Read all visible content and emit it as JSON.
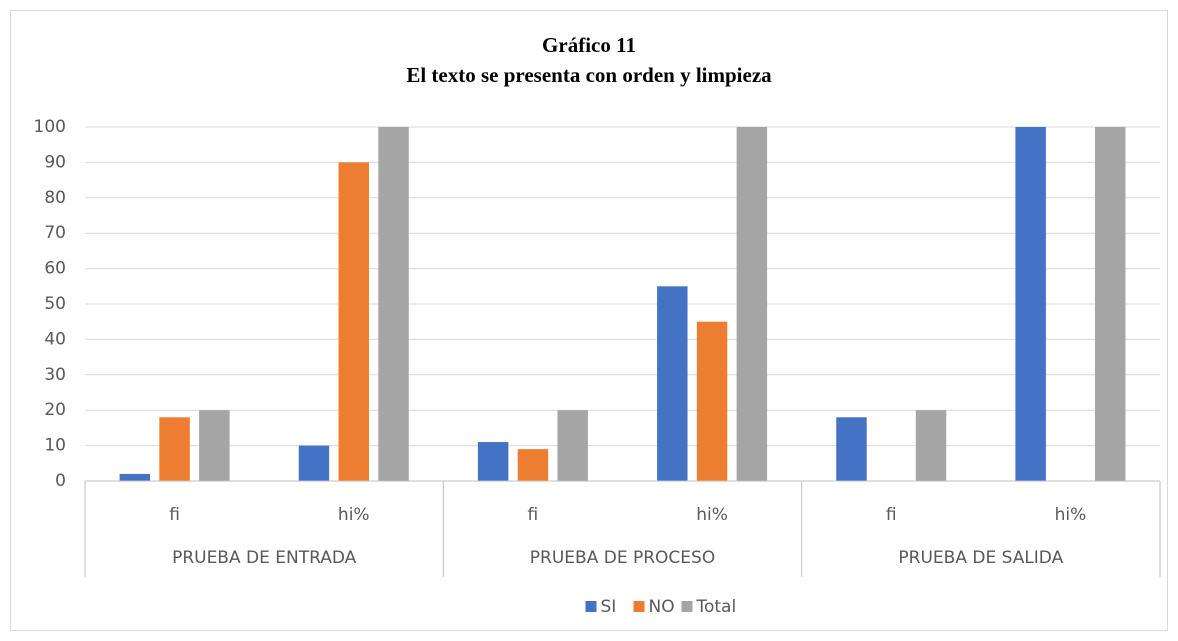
{
  "chart_data": {
    "type": "bar",
    "title": [
      "Gráfico 11",
      "El texto se presenta con orden y limpieza"
    ],
    "categories": [
      "fi",
      "hi%",
      "fi",
      "hi%",
      "fi",
      "hi%"
    ],
    "groups": [
      "PRUEBA DE ENTRADA",
      "PRUEBA DE PROCESO",
      "PRUEBA DE SALIDA"
    ],
    "series": [
      {
        "name": "SI",
        "color": "#4472c4",
        "values": [
          2,
          10,
          11,
          55,
          18,
          100
        ]
      },
      {
        "name": "NO",
        "color": "#ed7d31",
        "values": [
          18,
          90,
          9,
          45,
          0,
          0
        ]
      },
      {
        "name": "Total",
        "color": "#a5a5a5",
        "values": [
          20,
          100,
          20,
          100,
          20,
          100
        ]
      }
    ],
    "ylim": [
      0,
      100
    ],
    "yticks": [
      0,
      10,
      20,
      30,
      40,
      50,
      60,
      70,
      80,
      90,
      100
    ],
    "grid": true,
    "legend": "bottom"
  }
}
